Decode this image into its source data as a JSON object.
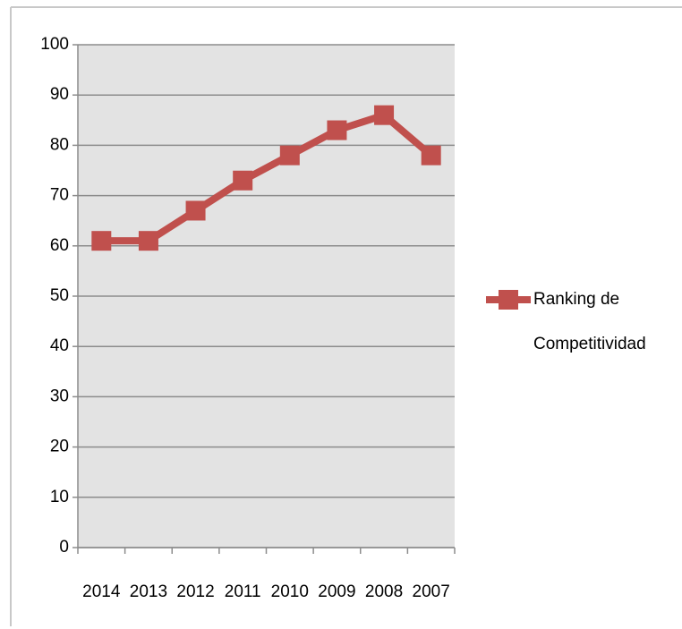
{
  "chart_data": {
    "type": "line",
    "categories": [
      "2014",
      "2013",
      "2012",
      "2011",
      "2010",
      "2009",
      "2008",
      "2007"
    ],
    "series": [
      {
        "name": "Ranking de Competitividad",
        "color": "#c0504d",
        "values": [
          61,
          61,
          67,
          73,
          78,
          83,
          86,
          78
        ]
      }
    ],
    "ylim": [
      0,
      100
    ],
    "yticks": [
      0,
      10,
      20,
      30,
      40,
      50,
      60,
      70,
      80,
      90,
      100
    ],
    "grid": true,
    "legend": "right"
  }
}
